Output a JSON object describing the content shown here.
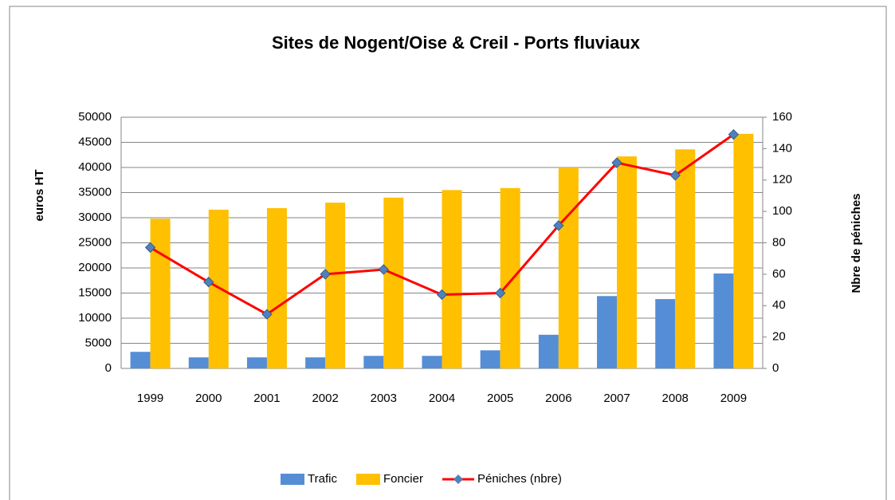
{
  "chart_data": {
    "type": "bar_line",
    "title": "Sites de Nogent/Oise & Creil - Ports fluviaux",
    "ylabel": "euros HT",
    "y2label": "Nbre de péniches",
    "categories": [
      "1999",
      "2000",
      "2001",
      "2002",
      "2003",
      "2004",
      "2005",
      "2006",
      "2007",
      "2008",
      "2009"
    ],
    "series": [
      {
        "name": "Trafic",
        "color": "#558ed5",
        "kind": "bar",
        "values": [
          3300,
          2200,
          2200,
          2200,
          2500,
          2500,
          3600,
          6700,
          14400,
          13800,
          18900
        ]
      },
      {
        "name": "Foncier",
        "color": "#ffc000",
        "kind": "bar",
        "values": [
          29800,
          31600,
          31900,
          33000,
          34000,
          35500,
          35900,
          40000,
          42200,
          43600,
          46700
        ]
      },
      {
        "name": "Péniches (nbre)",
        "color": "#ff0000",
        "marker_color": "#4f81bd",
        "kind": "line",
        "axis": "y2",
        "values": [
          77,
          55,
          34.5,
          60,
          63,
          47,
          48,
          91,
          131,
          123,
          149
        ]
      }
    ],
    "ylim": [
      0,
      50000
    ],
    "yticks": [
      0,
      5000,
      10000,
      15000,
      20000,
      25000,
      30000,
      35000,
      40000,
      45000,
      50000
    ],
    "y2lim": [
      0,
      160
    ],
    "y2ticks": [
      0,
      20,
      40,
      60,
      80,
      100,
      120,
      140,
      160
    ],
    "grid": true,
    "legend": "bottom"
  }
}
